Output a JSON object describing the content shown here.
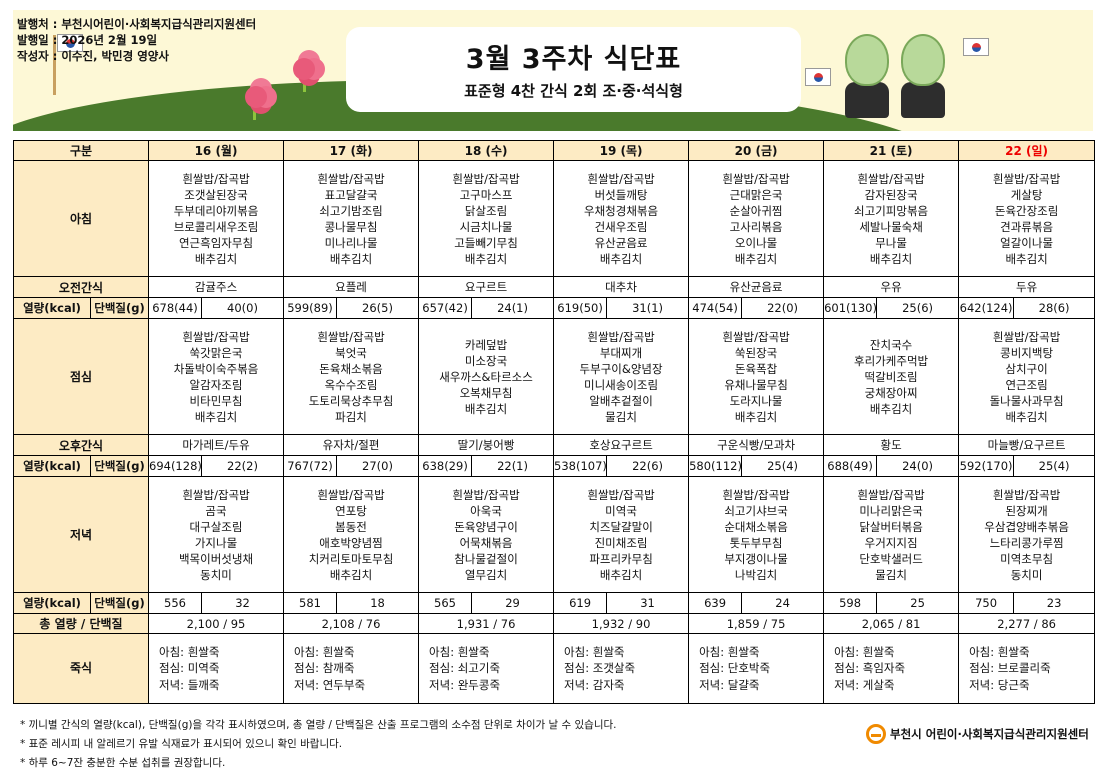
{
  "header": {
    "publisher": "발행처 : 부천시어린이·사회복지급식관리지원센터",
    "issue_date": "발행일 : 2026년 2월 19일",
    "authors": "작성자 : 이수진, 박민경 영양사",
    "title": "3월 3주차 식단표",
    "subtitle": "표준형 4찬 간식 2회 조·중·석식형"
  },
  "table": {
    "category_label": "구분",
    "days": [
      "16 (월)",
      "17 (화)",
      "18 (수)",
      "19 (목)",
      "20 (금)",
      "21 (토)",
      "22 (일)"
    ],
    "holiday_color": "#e00000",
    "breakfast_label": "아침",
    "morning_snack_label": "오전간식",
    "lunch_label": "점심",
    "afternoon_snack_label": "오후간식",
    "dinner_label": "저녁",
    "kcal_label": "열량(kcal)",
    "protein_label": "단백질(g)",
    "total_label": "총 열량 / 단백질",
    "porridge_label": "죽식",
    "breakfast": [
      [
        "흰쌀밥/잡곡밥",
        "조갯살된장국",
        "두부데리야끼볶음",
        "브로콜리새우조림",
        "연근흑임자무침",
        "배추김치"
      ],
      [
        "흰쌀밥/잡곡밥",
        "표고달걀국",
        "쇠고기밤조림",
        "콩나물무침",
        "미나리나물",
        "배추김치"
      ],
      [
        "흰쌀밥/잡곡밥",
        "고구마스프",
        "닭살조림",
        "시금치나물",
        "고들빼기무침",
        "배추김치"
      ],
      [
        "흰쌀밥/잡곡밥",
        "버섯들깨탕",
        "우채청경채볶음",
        "건새우조림",
        "유산균음료",
        "배추김치"
      ],
      [
        "흰쌀밥/잡곡밥",
        "근대맑은국",
        "순살아귀찜",
        "고사리볶음",
        "오이나물",
        "배추김치"
      ],
      [
        "흰쌀밥/잡곡밥",
        "감자된장국",
        "쇠고기피망볶음",
        "세발나물숙채",
        "무나물",
        "배추김치"
      ],
      [
        "흰쌀밥/잡곡밥",
        "게살탕",
        "돈육간장조림",
        "견과류볶음",
        "얼갈이나물",
        "배추김치"
      ]
    ],
    "morning_snack": [
      "감귤주스",
      "요플레",
      "요구르트",
      "대추차",
      "유산균음료",
      "우유",
      "두유"
    ],
    "breakfast_kcal": [
      [
        "678(44)",
        "40(0)"
      ],
      [
        "599(89)",
        "26(5)"
      ],
      [
        "657(42)",
        "24(1)"
      ],
      [
        "619(50)",
        "31(1)"
      ],
      [
        "474(54)",
        "22(0)"
      ],
      [
        "601(130)",
        "25(6)"
      ],
      [
        "642(124)",
        "28(6)"
      ]
    ],
    "lunch": [
      [
        "흰쌀밥/잡곡밥",
        "쑥갓맑은국",
        "차돌박이숙주볶음",
        "알감자조림",
        "비타민무침",
        "배추김치"
      ],
      [
        "흰쌀밥/잡곡밥",
        "북엇국",
        "돈육채소볶음",
        "옥수수조림",
        "도토리묵상추무침",
        "파김치"
      ],
      [
        "카레덮밥",
        "미소장국",
        "새우까스&타르소스",
        "오복채무침",
        "배추김치"
      ],
      [
        "흰쌀밥/잡곡밥",
        "부대찌개",
        "두부구이&양념장",
        "미니새송이조림",
        "알배추겉절이",
        "물김치"
      ],
      [
        "흰쌀밥/잡곡밥",
        "쑥된장국",
        "돈육폭찹",
        "유채나물무침",
        "도라지나물",
        "배추김치"
      ],
      [
        "잔치국수",
        "후리가케주먹밥",
        "떡갈비조림",
        "궁채장아찌",
        "배추김치"
      ],
      [
        "흰쌀밥/잡곡밥",
        "콩비지백탕",
        "삼치구이",
        "연근조림",
        "돌나물사과무침",
        "배추김치"
      ]
    ],
    "afternoon_snack": [
      "마가레트/두유",
      "유자차/절편",
      "딸기/붕어빵",
      "호상요구르트",
      "구운식빵/모과차",
      "황도",
      "마늘빵/요구르트"
    ],
    "lunch_kcal": [
      [
        "694(128)",
        "22(2)"
      ],
      [
        "767(72)",
        "27(0)"
      ],
      [
        "638(29)",
        "22(1)"
      ],
      [
        "538(107)",
        "22(6)"
      ],
      [
        "580(112)",
        "25(4)"
      ],
      [
        "688(49)",
        "24(0)"
      ],
      [
        "592(170)",
        "25(4)"
      ]
    ],
    "dinner": [
      [
        "흰쌀밥/잡곡밥",
        "곰국",
        "대구살조림",
        "가지나물",
        "백목이버섯냉채",
        "동치미"
      ],
      [
        "흰쌀밥/잡곡밥",
        "연포탕",
        "봄동전",
        "애호박양념찜",
        "치커리토마토무침",
        "배추김치"
      ],
      [
        "흰쌀밥/잡곡밥",
        "아욱국",
        "돈육양념구이",
        "어묵채볶음",
        "참나물겉절이",
        "열무김치"
      ],
      [
        "흰쌀밥/잡곡밥",
        "미역국",
        "치즈달걀말이",
        "진미채조림",
        "파프리카무침",
        "배추김치"
      ],
      [
        "흰쌀밥/잡곡밥",
        "쇠고기샤브국",
        "순대채소볶음",
        "톳두부무침",
        "부지갱이나물",
        "나박김치"
      ],
      [
        "흰쌀밥/잡곡밥",
        "미나리맑은국",
        "닭살버터볶음",
        "우거지지짐",
        "단호박샐러드",
        "물김치"
      ],
      [
        "흰쌀밥/잡곡밥",
        "된장찌개",
        "우삼겹양배추볶음",
        "느타리콩가루찜",
        "미역초무침",
        "동치미"
      ]
    ],
    "dinner_kcal": [
      [
        "556",
        "32"
      ],
      [
        "581",
        "18"
      ],
      [
        "565",
        "29"
      ],
      [
        "619",
        "31"
      ],
      [
        "639",
        "24"
      ],
      [
        "598",
        "25"
      ],
      [
        "750",
        "23"
      ]
    ],
    "totals": [
      "2,100  /  95",
      "2,108  /  76",
      "1,931  /  76",
      "1,932  /  90",
      "1,859  /  75",
      "2,065  /  81",
      "2,277  /  86"
    ],
    "porridge": [
      [
        "아침: 흰쌀죽",
        "점심: 미역죽",
        "저녁: 들깨죽"
      ],
      [
        "아침: 흰쌀죽",
        "점심: 참깨죽",
        "저녁: 연두부죽"
      ],
      [
        "아침: 흰쌀죽",
        "점심: 쇠고기죽",
        "저녁: 완두콩죽"
      ],
      [
        "아침: 흰쌀죽",
        "점심: 조갯살죽",
        "저녁: 감자죽"
      ],
      [
        "아침: 흰쌀죽",
        "점심: 단호박죽",
        "저녁: 달걀죽"
      ],
      [
        "아침: 흰쌀죽",
        "점심: 흑임자죽",
        "저녁: 게살죽"
      ],
      [
        "아침: 흰쌀죽",
        "점심: 브로콜리죽",
        "저녁: 당근죽"
      ]
    ]
  },
  "notes": [
    "* 끼니별 간식의 열량(kcal), 단백질(g)을 각각 표시하였으며, 총 열량 / 단백질은 산출 프로그램의 소수점 단위로 차이가 날 수 있습니다.",
    "* 표준 레시피 내 알레르기 유발 식재료가 표시되어 있으니 확인 바랍니다.",
    "* 하루 6~7잔 충분한 수분 섭취를 권장합니다."
  ],
  "footer_logo": "부천시 어린이·사회복지급식관리지원센터",
  "colors": {
    "header_bg": "#fdebc4",
    "banner_bg": "#fdf8d6",
    "logo": "#f08a00"
  }
}
